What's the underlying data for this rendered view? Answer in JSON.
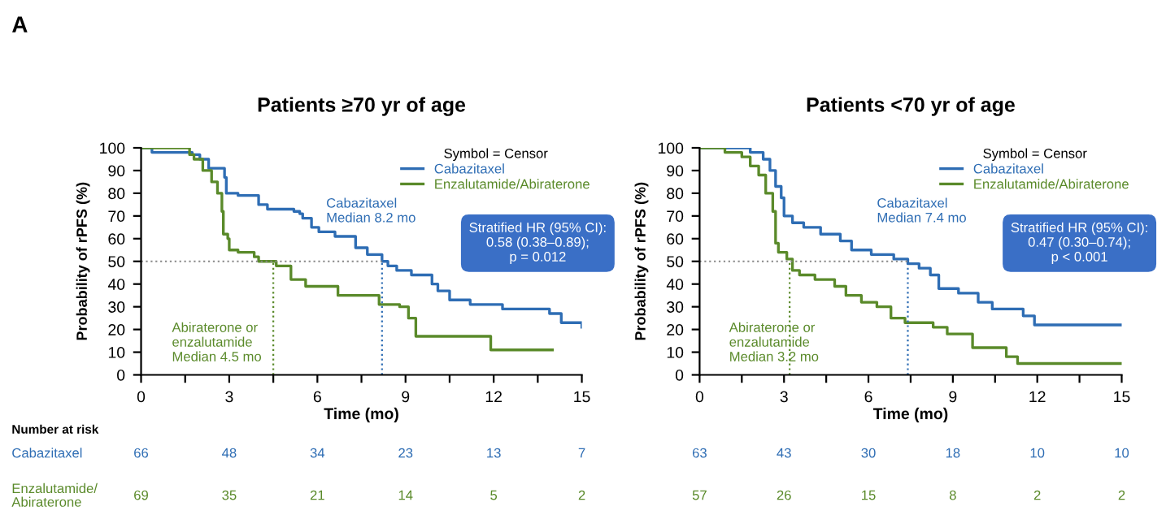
{
  "chart_data": [
    {
      "type": "step",
      "title": "Patients ≥70 yr of age",
      "xlabel": "Time (mo)",
      "ylabel": "Probability of rPFS (%)",
      "legend_title": "Symbol = Censor",
      "legend": "top right",
      "grid": false,
      "xlim": [
        0,
        15
      ],
      "ylim": [
        0,
        100
      ],
      "xticks": [
        0,
        {
          "value": 1.5,
          "label": null
        },
        3,
        {
          "value": 4.5,
          "label": null
        },
        6,
        {
          "value": 7.5,
          "label": null
        },
        9,
        {
          "value": 10.5,
          "label": null
        },
        12,
        {
          "value": 13.5,
          "label": null
        },
        15
      ],
      "yticks": [
        0,
        10,
        20,
        30,
        40,
        50,
        60,
        70,
        80,
        90,
        100
      ],
      "series": [
        {
          "name": "Cabazitaxel",
          "color": "#2e6db4",
          "x": [
            0,
            0.37,
            1.74,
            2.0,
            2.3,
            2.84,
            2.9,
            3.3,
            4.0,
            4.3,
            5.2,
            5.4,
            5.5,
            5.8,
            6.05,
            6.6,
            7.3,
            7.7,
            8.2,
            8.4,
            8.7,
            9.2,
            9.9,
            10.1,
            10.5,
            11.2,
            12.3,
            13.9,
            14.3,
            15
          ],
          "values": [
            100,
            98,
            97,
            95,
            91,
            87,
            80,
            79,
            75,
            73,
            72,
            71,
            69,
            65,
            63,
            61,
            56,
            53,
            50,
            48,
            46,
            44,
            40,
            37,
            33,
            31,
            29,
            27,
            23,
            21
          ]
        },
        {
          "name": "Enzalutamide/Abiraterone",
          "color": "#5a8a2a",
          "x": [
            0,
            1.65,
            1.8,
            2.1,
            2.4,
            2.6,
            2.75,
            2.8,
            2.95,
            3.0,
            3.3,
            3.85,
            4.0,
            4.6,
            5.1,
            5.6,
            6.7,
            8.1,
            8.8,
            9.1,
            9.35,
            11.9,
            14.0
          ],
          "values": [
            100,
            97,
            95,
            90,
            85,
            80,
            72,
            62,
            60,
            55,
            54,
            52,
            50,
            48,
            42,
            39,
            35,
            31,
            30,
            25,
            17,
            11,
            11
          ]
        }
      ],
      "ref_lines": [
        {
          "axis": "y",
          "value": 50,
          "color": "#888888",
          "line_style": "dotted"
        },
        {
          "axis": "x",
          "value": 4.5,
          "color": "#5a8a2a",
          "line_style": "dotted"
        },
        {
          "axis": "x",
          "value": 8.2,
          "color": "#2e6db4",
          "line_style": "dotted"
        }
      ],
      "annotations": [
        "Cabazitaxel\nMedian 8.2 mo",
        "Abiraterone or\nenzalutamide\nMedian 4.5 mo",
        "Stratified HR (95% CI):\n0.58 (0.38–0.89);\np = 0.012",
        "A",
        "Number at risk",
        "Cabazitaxel",
        "Enzalutamide/\nAbiraterone",
        "66",
        "48",
        "34",
        "23",
        "13",
        "7",
        "69",
        "35",
        "21",
        "14",
        "5",
        "2"
      ]
    },
    {
      "type": "step",
      "title": "Patients <70 yr of age",
      "xlabel": "Time (mo)",
      "ylabel": "Probability of rPFS (%)",
      "legend_title": "Symbol = Censor",
      "legend": "top right",
      "grid": false,
      "xlim": [
        0,
        15
      ],
      "ylim": [
        0,
        100
      ],
      "xticks": [
        0,
        {
          "value": 1.5,
          "label": null
        },
        3,
        {
          "value": 4.5,
          "label": null
        },
        6,
        {
          "value": 7.5,
          "label": null
        },
        9,
        {
          "value": 10.5,
          "label": null
        },
        12,
        {
          "value": 13.5,
          "label": null
        },
        15
      ],
      "yticks": [
        0,
        10,
        20,
        30,
        40,
        50,
        60,
        70,
        80,
        90,
        100
      ],
      "series": [
        {
          "name": "Cabazitaxel",
          "color": "#2e6db4",
          "x": [
            0,
            1.8,
            2.26,
            2.5,
            2.7,
            2.9,
            3.0,
            3.3,
            3.7,
            4.3,
            5.0,
            5.4,
            6.1,
            6.9,
            7.4,
            7.8,
            8.2,
            8.5,
            9.2,
            9.9,
            10.4,
            11.5,
            11.9,
            15
          ],
          "values": [
            100,
            98,
            95,
            90,
            83,
            78,
            70,
            67,
            65,
            62,
            59,
            55,
            53,
            51,
            49,
            47,
            44,
            38,
            36,
            32,
            29,
            26,
            22,
            22
          ]
        },
        {
          "name": "Enzalutamide/Abiraterone",
          "color": "#5a8a2a",
          "x": [
            0,
            0.9,
            1.5,
            1.8,
            2.1,
            2.35,
            2.6,
            2.7,
            2.8,
            3.1,
            3.3,
            3.55,
            4.1,
            4.8,
            5.2,
            5.75,
            6.3,
            6.8,
            7.3,
            8.3,
            8.8,
            9.7,
            10.9,
            11.3,
            15
          ],
          "values": [
            100,
            98,
            96,
            92,
            88,
            80,
            72,
            58,
            54,
            51,
            46,
            44,
            42,
            39,
            35,
            32,
            30,
            25,
            23,
            21,
            18,
            12,
            8,
            5,
            5
          ]
        }
      ],
      "ref_lines": [
        {
          "axis": "y",
          "value": 50,
          "color": "#888888",
          "line_style": "dotted"
        },
        {
          "axis": "x",
          "value": 3.2,
          "color": "#5a8a2a",
          "line_style": "dotted"
        },
        {
          "axis": "x",
          "value": 7.4,
          "color": "#2e6db4",
          "line_style": "dotted"
        }
      ],
      "annotations": [
        "Cabazitaxel\nMedian 7.4 mo",
        "Abiraterone or\nenzalutamide\nMedian 3.2 mo",
        "Stratified HR (95% CI):\n0.47 (0.30–0.74);\np < 0.001",
        "63",
        "43",
        "30",
        "18",
        "10",
        "10",
        "57",
        "26",
        "15",
        "8",
        "2",
        "2"
      ]
    }
  ]
}
